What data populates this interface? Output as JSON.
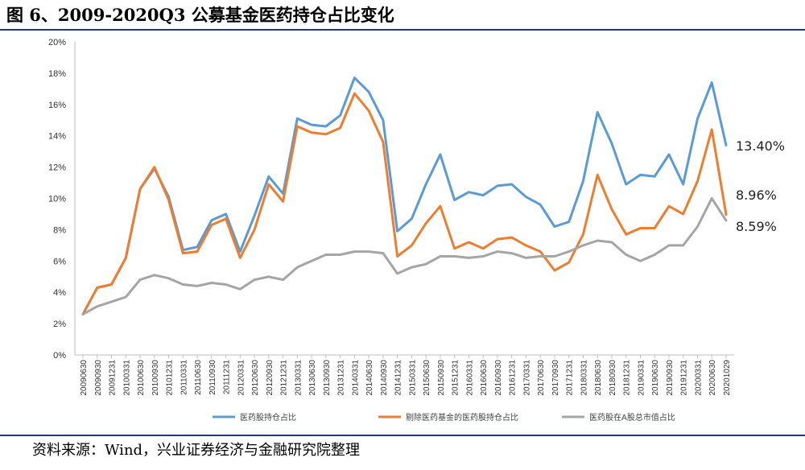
{
  "header": {
    "title": "图 6、2009-2020Q3 公募基金医药持仓占比变化"
  },
  "footer": {
    "source": "资料来源：Wind，兴业证券经济与金融研究院整理"
  },
  "chart_data": {
    "type": "line",
    "ylim": [
      0,
      20
    ],
    "y_ticks": [
      "0%",
      "2%",
      "4%",
      "6%",
      "8%",
      "10%",
      "12%",
      "14%",
      "16%",
      "18%",
      "20%"
    ],
    "grid": false,
    "legend": "bottom",
    "categories": [
      "20090630",
      "20090930",
      "20091231",
      "20100331",
      "20100630",
      "20100930",
      "20101231",
      "20110331",
      "20110630",
      "20110930",
      "20111231",
      "20120331",
      "20120630",
      "20120930",
      "20121231",
      "20130331",
      "20130630",
      "20130930",
      "20131231",
      "20140331",
      "20140630",
      "20140930",
      "20141231",
      "20150331",
      "20150630",
      "20150930",
      "20151231",
      "20160331",
      "20160630",
      "20160930",
      "20161231",
      "20170331",
      "20170630",
      "20170930",
      "20171231",
      "20180331",
      "20180630",
      "20180930",
      "20181231",
      "20190331",
      "20190630",
      "20190930",
      "20191231",
      "20200331",
      "20200630",
      "20201029"
    ],
    "series": [
      {
        "name": "医药股持仓占比",
        "color": "#5b9bd5",
        "end_label": "13.40%",
        "values": [
          2.6,
          4.3,
          4.5,
          6.2,
          10.6,
          11.9,
          10.1,
          6.7,
          6.9,
          8.6,
          9.0,
          6.6,
          8.9,
          11.4,
          10.3,
          15.1,
          14.7,
          14.6,
          15.3,
          17.7,
          16.8,
          15.0,
          7.9,
          8.7,
          10.9,
          12.8,
          9.9,
          10.4,
          10.2,
          10.8,
          10.9,
          10.1,
          9.6,
          8.2,
          8.5,
          11.1,
          15.5,
          13.5,
          10.9,
          11.5,
          11.4,
          12.8,
          10.9,
          15.1,
          17.4,
          13.4
        ]
      },
      {
        "name": "剔除医药基金的医药股持仓占比",
        "color": "#ed7d31",
        "end_label": "8.96%",
        "values": [
          2.6,
          4.3,
          4.5,
          6.2,
          10.6,
          12.0,
          9.9,
          6.5,
          6.6,
          8.3,
          8.7,
          6.2,
          8.0,
          10.9,
          9.8,
          14.6,
          14.2,
          14.1,
          14.5,
          16.7,
          15.6,
          13.6,
          6.3,
          7.0,
          8.4,
          9.5,
          6.8,
          7.2,
          6.8,
          7.4,
          7.5,
          7.0,
          6.6,
          5.4,
          5.9,
          7.7,
          11.5,
          9.3,
          7.7,
          8.1,
          8.1,
          9.5,
          9.0,
          11.1,
          14.4,
          8.96
        ]
      },
      {
        "name": "医药股在A股总市值占比",
        "color": "#a5a5a5",
        "end_label": "8.59%",
        "values": [
          2.6,
          3.1,
          3.4,
          3.7,
          4.8,
          5.1,
          4.9,
          4.5,
          4.4,
          4.6,
          4.5,
          4.2,
          4.8,
          5.0,
          4.8,
          5.6,
          6.0,
          6.4,
          6.4,
          6.6,
          6.6,
          6.5,
          5.2,
          5.6,
          5.8,
          6.3,
          6.3,
          6.2,
          6.3,
          6.6,
          6.5,
          6.2,
          6.3,
          6.3,
          6.6,
          7.0,
          7.3,
          7.2,
          6.4,
          6.0,
          6.4,
          7.0,
          7.0,
          8.2,
          10.0,
          8.59
        ]
      }
    ]
  }
}
